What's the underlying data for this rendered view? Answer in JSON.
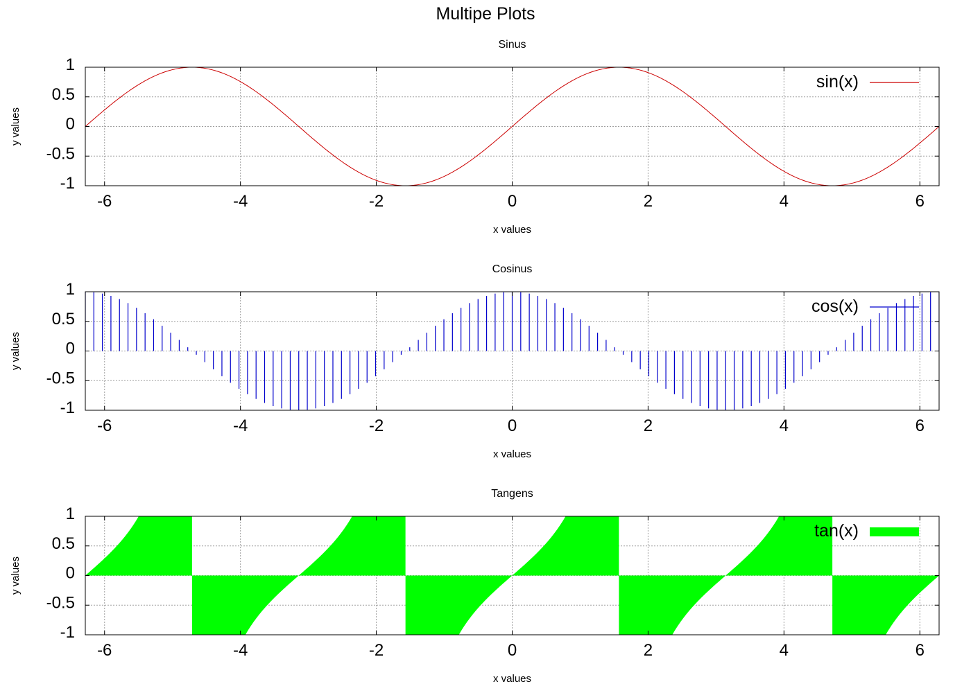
{
  "figure": {
    "title": "Multipe Plots"
  },
  "colors": {
    "sin": "#cc0000",
    "cos": "#0000cc",
    "tan": "#00ff00",
    "grid": "#a0a0a0",
    "frame": "#000000"
  },
  "chart_data": [
    {
      "type": "line",
      "title": "Sinus",
      "xlabel": "x values",
      "ylabel": "y values",
      "xlim": [
        -6.2832,
        6.2832
      ],
      "ylim": [
        -1,
        1
      ],
      "xticks": [
        "-6",
        "-4",
        "-2",
        "0",
        "2",
        "4",
        "6"
      ],
      "yticks": [
        "-1",
        "-0.5",
        "0",
        "0.5",
        "1"
      ],
      "grid": true,
      "legend_position": "top-right",
      "series": [
        {
          "name": "sin(x)",
          "function": "sin",
          "style": "lines",
          "color": "#cc0000"
        }
      ]
    },
    {
      "type": "bar",
      "title": "Cosinus",
      "xlabel": "x values",
      "ylabel": "y values",
      "xlim": [
        -6.2832,
        6.2832
      ],
      "ylim": [
        -1,
        1
      ],
      "xticks": [
        "-6",
        "-4",
        "-2",
        "0",
        "2",
        "4",
        "6"
      ],
      "yticks": [
        "-1",
        "-0.5",
        "0",
        "0.5",
        "1"
      ],
      "grid": true,
      "legend_position": "top-right",
      "series": [
        {
          "name": "cos(x)",
          "function": "cos",
          "style": "impulses",
          "color": "#0000cc"
        }
      ]
    },
    {
      "type": "area",
      "title": "Tangens",
      "xlabel": "x values",
      "ylabel": "y values",
      "xlim": [
        -6.2832,
        6.2832
      ],
      "ylim": [
        -1,
        1
      ],
      "xticks": [
        "-6",
        "-4",
        "-2",
        "0",
        "2",
        "4",
        "6"
      ],
      "yticks": [
        "-1",
        "-0.5",
        "0",
        "0.5",
        "1"
      ],
      "grid": true,
      "legend_position": "top-right",
      "series": [
        {
          "name": "tan(x)",
          "function": "tan",
          "style": "filledcurves",
          "color": "#00ff00"
        }
      ]
    }
  ]
}
